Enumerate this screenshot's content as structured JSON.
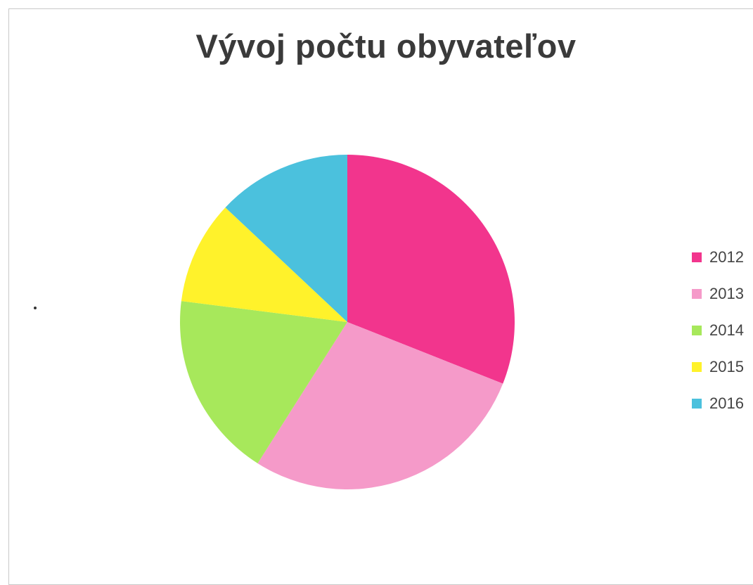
{
  "chart_data": {
    "type": "pie",
    "title": "Vývoj počtu obyvateľov",
    "categories": [
      "2012",
      "2013",
      "2014",
      "2015",
      "2016"
    ],
    "values": [
      31,
      28,
      18,
      10,
      13
    ],
    "colors": [
      "#f2358d",
      "#f59ac9",
      "#a7e85b",
      "#fff22b",
      "#4bc1dd"
    ],
    "start_angle_deg": 0,
    "direction": "clockwise",
    "legend_position": "right"
  }
}
